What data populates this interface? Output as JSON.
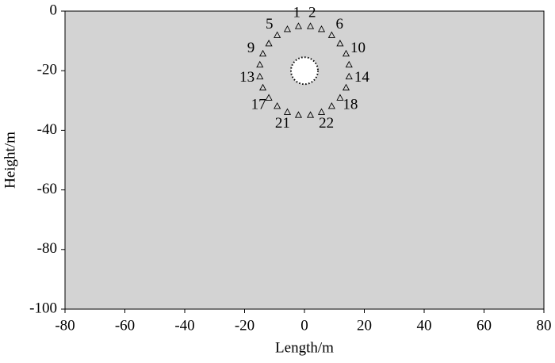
{
  "chart_data": {
    "type": "scatter",
    "x_label": "Length/m",
    "y_label": "Height/m",
    "xlim": [
      -80,
      80
    ],
    "ylim": [
      -100,
      0
    ],
    "xticks": [
      -80,
      -60,
      -40,
      -20,
      0,
      20,
      40,
      60,
      80
    ],
    "yticks": [
      -100,
      -80,
      -60,
      -40,
      -20,
      0
    ],
    "background": "#d3d3d3",
    "series": [
      {
        "color": "#000000",
        "marker": "triangle",
        "x": [
          -2.0,
          2.0,
          -5.7,
          5.7,
          -9.1,
          9.1,
          -11.9,
          11.9,
          -13.9,
          13.9,
          -14.9,
          14.9,
          -14.9,
          14.9,
          -13.9,
          13.9,
          -11.9,
          11.9,
          -9.1,
          9.1,
          -5.7,
          5.7,
          -2.0,
          2.0
        ],
        "values": [
          -5.1,
          -5.1,
          -6.1,
          -6.1,
          -8.1,
          -8.1,
          -10.9,
          -10.9,
          -14.3,
          -14.3,
          -18.0,
          -18.0,
          -22.0,
          -22.0,
          -25.7,
          -25.7,
          -29.1,
          -29.1,
          -31.9,
          -31.9,
          -33.9,
          -33.9,
          -34.9,
          -34.9
        ],
        "point_labels": [
          "1",
          "2",
          null,
          null,
          "5",
          "6",
          null,
          null,
          "9",
          "10",
          null,
          null,
          "13",
          "14",
          null,
          null,
          "17",
          "18",
          null,
          null,
          "21",
          "22",
          null,
          null
        ]
      }
    ],
    "circle": {
      "x": 0,
      "y": -20,
      "r": 4.5,
      "fill": "#ffffff"
    }
  }
}
